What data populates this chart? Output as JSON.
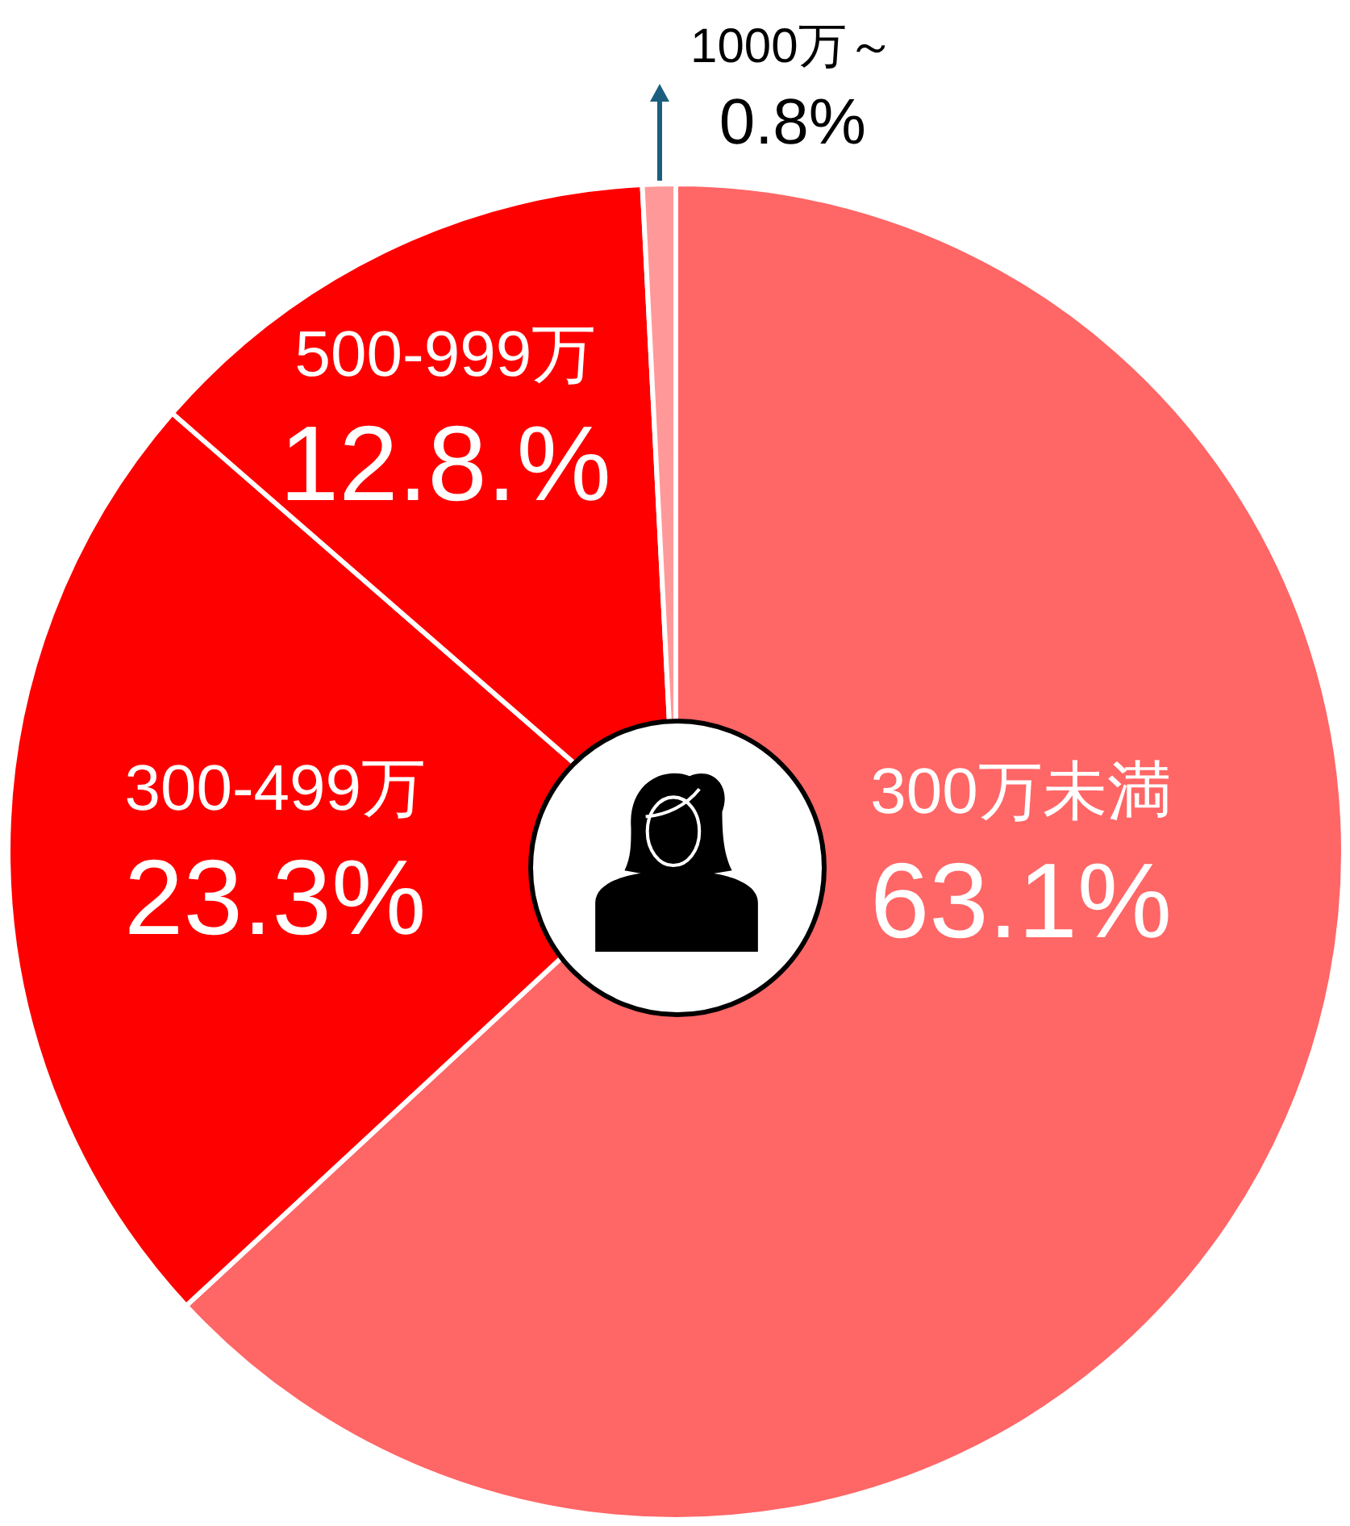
{
  "chart_data": {
    "type": "pie",
    "categories": [
      "300万未満",
      "300-499万",
      "500-999万",
      "1000万～"
    ],
    "values": [
      63.1,
      23.3,
      12.8,
      0.8
    ],
    "colors": [
      "#ff6666",
      "#ff0000",
      "#ff0000",
      "#ff9999"
    ],
    "value_labels": [
      "63.1%",
      "23.3%",
      "12.8.%",
      "0.8%"
    ]
  }
}
